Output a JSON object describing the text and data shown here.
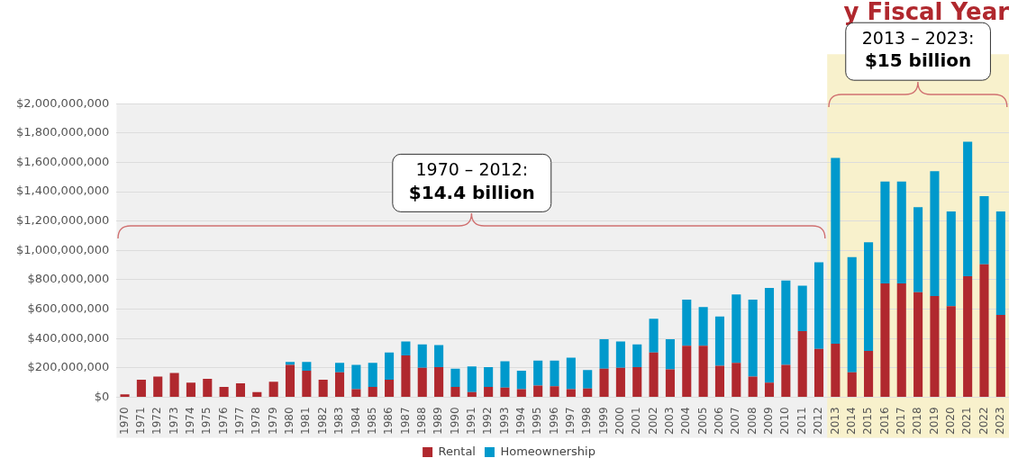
{
  "chart_data": {
    "type": "bar",
    "title": "y Fiscal Year",
    "stacked": true,
    "categories": [
      "1970",
      "1971",
      "1972",
      "1973",
      "1974",
      "1975",
      "1976",
      "1977",
      "1978",
      "1979",
      "1980",
      "1981",
      "1982",
      "1983",
      "1984",
      "1985",
      "1986",
      "1987",
      "1988",
      "1989",
      "1990",
      "1991",
      "1992",
      "1993",
      "1994",
      "1995",
      "1996",
      "1997",
      "1998",
      "1999",
      "2000",
      "2001",
      "2002",
      "2003",
      "2004",
      "2005",
      "2006",
      "2007",
      "2008",
      "2009",
      "2010",
      "2011",
      "2012",
      "2013",
      "2014",
      "2015",
      "2016",
      "2017",
      "2018",
      "2019",
      "2020",
      "2021",
      "2022",
      "2023"
    ],
    "series": [
      {
        "name": "Rental",
        "color": "#b0282e",
        "values": [
          20000000,
          120000000,
          140000000,
          165000000,
          100000000,
          125000000,
          70000000,
          95000000,
          35000000,
          105000000,
          220000000,
          180000000,
          120000000,
          170000000,
          55000000,
          70000000,
          120000000,
          285000000,
          200000000,
          205000000,
          70000000,
          35000000,
          70000000,
          65000000,
          55000000,
          80000000,
          75000000,
          55000000,
          60000000,
          195000000,
          200000000,
          205000000,
          305000000,
          190000000,
          350000000,
          350000000,
          215000000,
          235000000,
          140000000,
          100000000,
          220000000,
          450000000,
          330000000,
          365000000,
          170000000,
          315000000,
          775000000,
          775000000,
          715000000,
          690000000,
          620000000,
          825000000,
          905000000,
          560000000
        ]
      },
      {
        "name": "Homeownership",
        "color": "#0099cc",
        "values": [
          0,
          0,
          0,
          0,
          0,
          0,
          0,
          0,
          0,
          0,
          20000000,
          60000000,
          0,
          65000000,
          165000000,
          165000000,
          185000000,
          95000000,
          160000000,
          150000000,
          125000000,
          175000000,
          135000000,
          180000000,
          125000000,
          170000000,
          175000000,
          215000000,
          125000000,
          200000000,
          180000000,
          155000000,
          230000000,
          205000000,
          315000000,
          265000000,
          335000000,
          465000000,
          525000000,
          645000000,
          575000000,
          310000000,
          590000000,
          1265000000,
          785000000,
          740000000,
          695000000,
          695000000,
          580000000,
          850000000,
          645000000,
          915000000,
          465000000,
          705000000
        ]
      }
    ],
    "ylim": [
      0,
      2000000000
    ],
    "yticks": [
      {
        "value": 0,
        "label": "$0"
      },
      {
        "value": 200000000,
        "label": "$200,000,000"
      },
      {
        "value": 400000000,
        "label": "$400,000,000"
      },
      {
        "value": 600000000,
        "label": "$600,000,000"
      },
      {
        "value": 800000000,
        "label": "$800,000,000"
      },
      {
        "value": 1000000000,
        "label": "$1,000,000,000"
      },
      {
        "value": 1200000000,
        "label": "$1,200,000,000"
      },
      {
        "value": 1400000000,
        "label": "$1,400,000,000"
      },
      {
        "value": 1600000000,
        "label": "$1,600,000,000"
      },
      {
        "value": 1800000000,
        "label": "$1,800,000,000"
      },
      {
        "value": 2000000000,
        "label": "$2,000,000,000"
      }
    ],
    "grid": "y",
    "legend": "bottom",
    "bands": [
      {
        "axis": "x",
        "from": "2013",
        "to": "2023",
        "color": "#f8f1cc"
      }
    ],
    "annotations": [
      "1970 – 2012:\n$14.4 billion",
      "2013 – 2023:\n$15 billion"
    ]
  }
}
